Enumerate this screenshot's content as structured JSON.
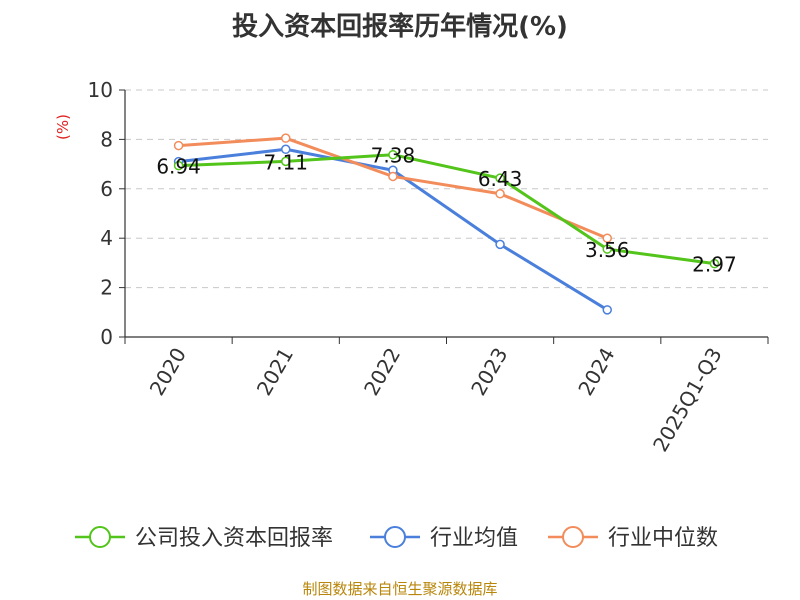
{
  "colors": {
    "company": "#52c41a",
    "industry_avg": "#4a7fdc",
    "industry_median": "#f28c5a",
    "unit": "#e02020",
    "axis": "#333333",
    "grid": "#c8c8c8",
    "source": "#b8860b"
  },
  "chart_data": {
    "type": "line",
    "title": "投入资本回报率历年情况(%)",
    "ylabel": "(%)",
    "xlabel": "",
    "categories": [
      "2020",
      "2021",
      "2022",
      "2023",
      "2024",
      "2025Q1-Q3"
    ],
    "ylim": [
      0,
      10
    ],
    "yticks": [
      0,
      2,
      4,
      6,
      8,
      10
    ],
    "grid": true,
    "legend_position": "bottom",
    "series": [
      {
        "name": "公司投入资本回报率",
        "color_key": "company",
        "values": [
          6.94,
          7.11,
          7.38,
          6.43,
          3.56,
          2.97
        ],
        "show_labels": true
      },
      {
        "name": "行业均值",
        "color_key": "industry_avg",
        "values": [
          7.1,
          7.6,
          6.75,
          3.75,
          1.1,
          null
        ],
        "show_labels": false
      },
      {
        "name": "行业中位数",
        "color_key": "industry_median",
        "values": [
          7.75,
          8.05,
          6.5,
          5.8,
          4.0,
          null
        ],
        "show_labels": false
      }
    ],
    "data_labels": [
      "6.94",
      "7.11",
      "7.38",
      "6.43",
      "3.56",
      "2.97"
    ]
  },
  "source": "制图数据来自恒生聚源数据库"
}
